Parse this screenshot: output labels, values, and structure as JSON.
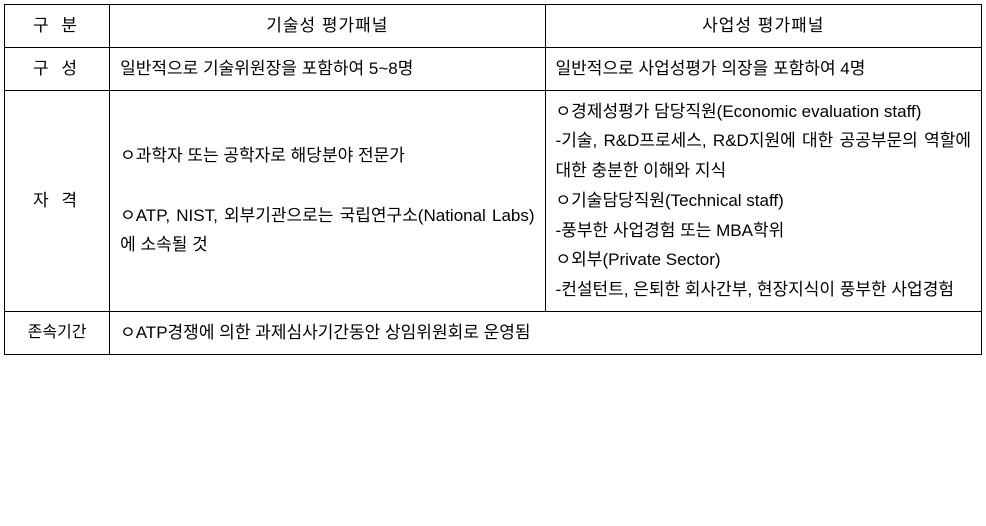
{
  "table": {
    "headers": {
      "category": "구 분",
      "tech_panel": "기술성 평가패널",
      "business_panel": "사업성 평가패널"
    },
    "rows": {
      "composition": {
        "label": "구 성",
        "tech": "일반적으로 기술위원장을 포함하여 5~8명",
        "business": "일반적으로 사업성평가 의장을 포함하여 4명"
      },
      "qualification": {
        "label": "자 격",
        "tech": "ㅇ과학자 또는 공학자로 해당분야 전문가\n\nㅇATP, NIST, 외부기관으로는 국립연구소(National Labs)에 소속될 것",
        "business": "ㅇ경제성평가 담당직원(Economic evaluation staff)\n-기술, R&D프로세스, R&D지원에 대한 공공부문의 역할에 대한 충분한 이해와 지식\nㅇ기술담당직원(Technical staff)\n-풍부한 사업경험 또는 MBA학위\nㅇ외부(Private Sector)\n-컨설턴트, 은퇴한 회사간부, 현장지식이 풍부한 사업경험"
      },
      "duration": {
        "label": "존속기간",
        "content": "ㅇATP경쟁에 의한 과제심사기간동안 상임위원회로 운영됨"
      }
    }
  }
}
